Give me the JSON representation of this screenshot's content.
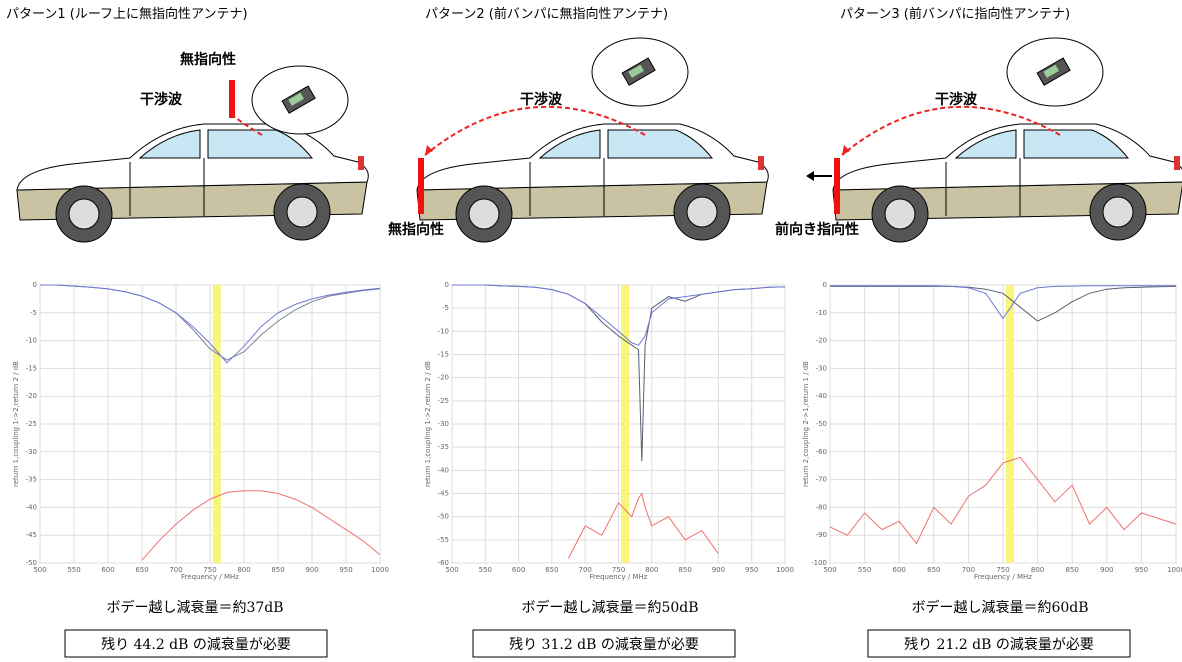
{
  "panels": [
    {
      "title": "パターン1 (ルーフ上に無指向性アンテナ)",
      "antenna_label": "無指向性",
      "wave_label": "干渉波",
      "attenuation": "ボデー越し減衰量＝約37dB",
      "required": "残り 44.2 dB の減衰量が必要"
    },
    {
      "title": "パターン2 (前バンパに無指向性アンテナ)",
      "antenna_label": "無指向性",
      "wave_label": "干渉波",
      "attenuation": "ボデー越し減衰量＝約50dB",
      "required": "残り 31.2 dB の減衰量が必要"
    },
    {
      "title": "パターン3 (前バンパに指向性アンテナ)",
      "antenna_label": "前向き指向性",
      "wave_label": "干渉波",
      "attenuation": "ボデー越し減衰量＝約60dB",
      "required": "残り 21.2 dB の減衰量が必要"
    }
  ],
  "chart_data": [
    {
      "type": "line",
      "x_label": "Frequency / MHz",
      "y_label": "return 1,coupling 1->2,return 2 / dB",
      "xlim": [
        500,
        1000
      ],
      "ylim": [
        -50,
        0
      ],
      "grid": true,
      "highlight_x": 760,
      "highlight_color": "#f7f57a",
      "xticks": [
        500,
        550,
        600,
        650,
        700,
        750,
        800,
        850,
        900,
        950,
        1000
      ],
      "yticks": [
        0,
        -5,
        -10,
        -15,
        -20,
        -25,
        -30,
        -35,
        -40,
        -45,
        -50
      ],
      "x": [
        500,
        525,
        550,
        575,
        600,
        625,
        650,
        675,
        700,
        725,
        750,
        775,
        800,
        825,
        850,
        875,
        900,
        925,
        950,
        975,
        1000
      ],
      "series": [
        {
          "color": "#7a7f9a",
          "values": [
            0,
            0,
            -0.2,
            -0.4,
            -0.7,
            -1.2,
            -2,
            -3.2,
            -5,
            -8,
            -11.5,
            -13.5,
            -12,
            -9,
            -6.5,
            -4.5,
            -3,
            -2,
            -1.5,
            -1,
            -0.7
          ]
        },
        {
          "color": "#6f78d8",
          "values": [
            0,
            0,
            -0.2,
            -0.4,
            -0.7,
            -1.2,
            -2,
            -3.2,
            -5,
            -7.5,
            -10.5,
            -14,
            -11,
            -7.5,
            -5,
            -3.5,
            -2.5,
            -1.8,
            -1.3,
            -0.9,
            -0.6
          ]
        },
        {
          "color": "#f07070",
          "values": [
            null,
            null,
            null,
            null,
            null,
            null,
            -49.5,
            -46,
            -43,
            -40.5,
            -38.5,
            -37.3,
            -37,
            -37,
            -37.5,
            -38.5,
            -40,
            -42,
            -44,
            -46,
            -48.5
          ]
        }
      ]
    },
    {
      "type": "line",
      "x_label": "Frequency / MHz",
      "y_label": "return 1,coupling 1->2,return 2 / dB",
      "xlim": [
        500,
        1000
      ],
      "ylim": [
        -60,
        0
      ],
      "grid": true,
      "highlight_x": 760,
      "highlight_color": "#f7f57a",
      "xticks": [
        500,
        550,
        600,
        650,
        700,
        750,
        800,
        850,
        900,
        950,
        1000
      ],
      "yticks": [
        0,
        -5,
        -10,
        -15,
        -20,
        -25,
        -30,
        -35,
        -40,
        -45,
        -50,
        -55,
        -60
      ],
      "x": [
        500,
        525,
        550,
        575,
        600,
        625,
        650,
        675,
        700,
        725,
        750,
        770,
        780,
        785,
        790,
        800,
        825,
        850,
        875,
        900,
        925,
        950,
        975,
        1000
      ],
      "series": [
        {
          "color": "#5a5f70",
          "values": [
            0,
            0,
            0,
            -0.2,
            -0.3,
            -0.5,
            -1,
            -2,
            -4,
            -8,
            -11,
            -13,
            -14,
            -38,
            -13,
            -5,
            -2.5,
            -3.5,
            -2,
            -1.5,
            -1,
            -0.8,
            -0.5,
            -0.4
          ]
        },
        {
          "color": "#6f78d8",
          "values": [
            0,
            0,
            0,
            -0.2,
            -0.3,
            -0.5,
            -1,
            -2,
            -4,
            -7,
            -10,
            -12.5,
            -13,
            -12,
            -11,
            -6,
            -3,
            -2.5,
            -2,
            -1.5,
            -1,
            -0.8,
            -0.5,
            -0.4
          ]
        },
        {
          "color": "#f07070",
          "values": [
            null,
            null,
            null,
            null,
            null,
            null,
            null,
            -59,
            -52,
            -54,
            -47,
            -50,
            -46,
            -45,
            -48,
            -52,
            -50,
            -55,
            -53,
            -58,
            null,
            null,
            null,
            null
          ]
        }
      ]
    },
    {
      "type": "line",
      "x_label": "Frequency / MHz",
      "y_label": "return 2,coupling 2->1,return 1 / dB",
      "xlim": [
        500,
        1000
      ],
      "ylim": [
        -100,
        0
      ],
      "grid": true,
      "highlight_x": 760,
      "highlight_color": "#f7f57a",
      "xticks": [
        500,
        550,
        600,
        650,
        700,
        750,
        800,
        850,
        900,
        950,
        1000
      ],
      "yticks": [
        0,
        -10,
        -20,
        -30,
        -40,
        -50,
        -60,
        -70,
        -80,
        -90,
        -100
      ],
      "x": [
        500,
        525,
        550,
        575,
        600,
        625,
        650,
        675,
        700,
        725,
        750,
        775,
        800,
        825,
        850,
        875,
        900,
        925,
        950,
        975,
        1000
      ],
      "series": [
        {
          "color": "#5a5f70",
          "values": [
            -0.5,
            -0.5,
            -0.5,
            -0.5,
            -0.5,
            -0.5,
            -0.5,
            -0.5,
            -0.8,
            -1.5,
            -3,
            -8,
            -13,
            -10,
            -6,
            -3,
            -1.5,
            -1,
            -0.8,
            -0.6,
            -0.5
          ]
        },
        {
          "color": "#6f78d8",
          "values": [
            -0.3,
            -0.3,
            -0.3,
            -0.3,
            -0.3,
            -0.3,
            -0.3,
            -0.5,
            -1,
            -3,
            -12,
            -3,
            -1,
            -0.5,
            -0.4,
            -0.3,
            -0.3,
            -0.3,
            -0.3,
            -0.3,
            -0.3
          ]
        },
        {
          "color": "#f07070",
          "values": [
            -87,
            -90,
            -82,
            -88,
            -85,
            -93,
            -80,
            -86,
            -76,
            -72,
            -64,
            -62,
            -70,
            -78,
            -72,
            -86,
            -80,
            -88,
            -82,
            -84,
            -86
          ]
        }
      ]
    }
  ]
}
